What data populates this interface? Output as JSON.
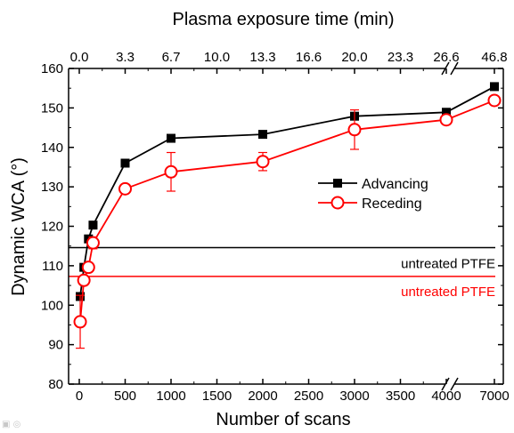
{
  "chart_data": {
    "type": "line",
    "xlabel": "Number of scans",
    "x2label": "Plasma exposure time (min)",
    "ylabel": "Dynamic WCA (°)",
    "ylim": [
      80,
      160
    ],
    "yticks": [
      80,
      90,
      100,
      110,
      120,
      130,
      140,
      150,
      160
    ],
    "xticks": [
      0,
      500,
      1000,
      1500,
      2000,
      2500,
      3000,
      3500,
      4000,
      7000
    ],
    "x2ticks": [
      "0.0",
      "3.3",
      "6.7",
      "10.0",
      "13.3",
      "16.6",
      "20.0",
      "23.3",
      "26.6",
      "46.8"
    ],
    "x_axis_break": "between 4000 and 7000",
    "grid": false,
    "legend_position": "center-right",
    "series": [
      {
        "name": "Advancing",
        "color": "#000000",
        "marker": "filled-square",
        "x": [
          10,
          50,
          100,
          150,
          500,
          1000,
          2000,
          3000,
          4000,
          7000
        ],
        "y": [
          102.2,
          109.6,
          116.8,
          120.3,
          136.0,
          142.3,
          143.3,
          147.9,
          148.9,
          155.4
        ],
        "err": [
          0,
          0,
          0,
          0,
          0,
          0,
          0,
          0,
          0,
          0
        ]
      },
      {
        "name": "Receding",
        "color": "#ff0000",
        "marker": "open-circle",
        "x": [
          10,
          50,
          100,
          150,
          500,
          1000,
          2000,
          3000,
          4000,
          7000
        ],
        "y": [
          95.8,
          106.3,
          109.6,
          115.8,
          129.5,
          133.8,
          136.4,
          144.5,
          147.0,
          151.9
        ],
        "err": [
          6.7,
          0,
          0,
          1.5,
          0,
          4.9,
          2.3,
          5.0,
          0,
          0
        ]
      }
    ],
    "reference_lines": [
      {
        "label": "untreated PTFE",
        "y": 114.6,
        "color": "#000000"
      },
      {
        "label": "untreated PTFE",
        "y": 107.3,
        "color": "#ff0000"
      }
    ]
  }
}
